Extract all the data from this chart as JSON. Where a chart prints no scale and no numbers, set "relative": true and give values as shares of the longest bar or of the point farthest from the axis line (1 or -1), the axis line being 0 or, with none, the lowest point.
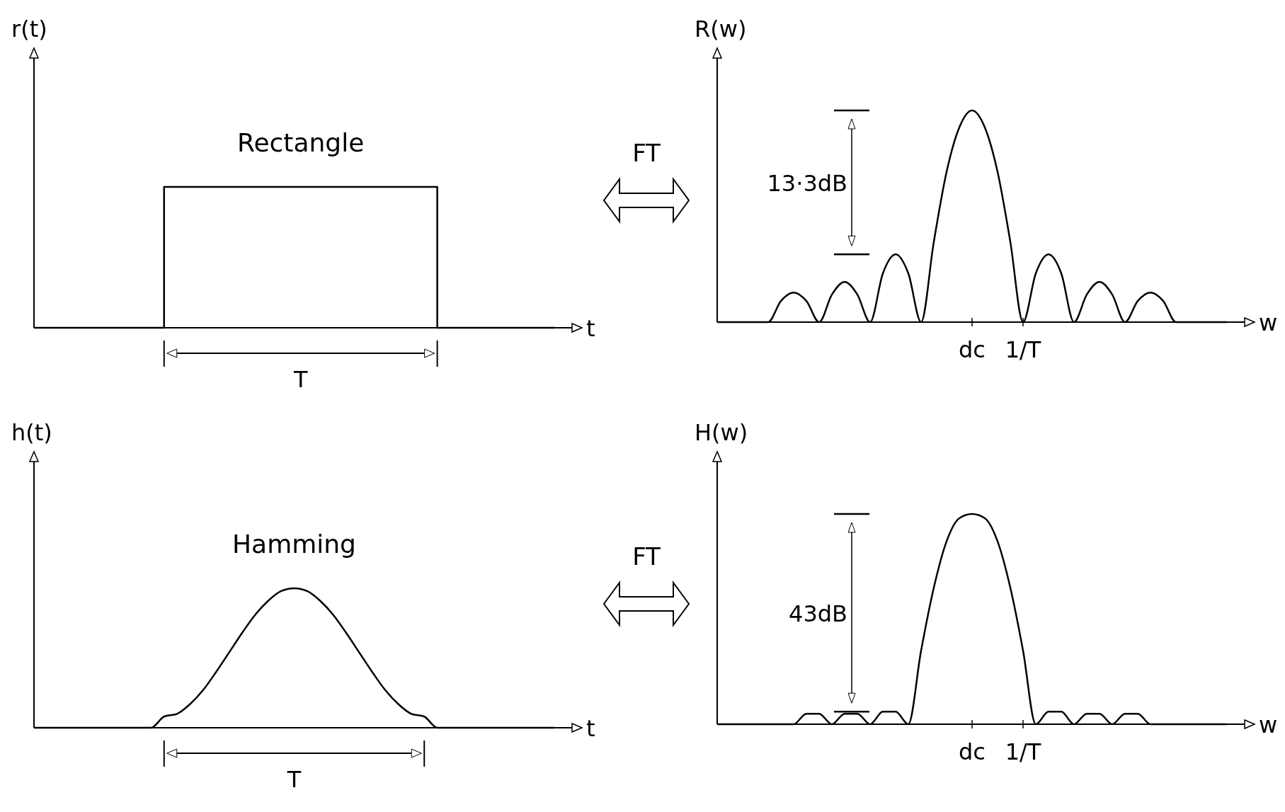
{
  "chart_data": [
    {
      "type": "step",
      "title": "Rectangle",
      "ylabel": "r(t)",
      "xlabel": "t",
      "relative": true,
      "tick_labels": false,
      "categories": [
        null,
        null,
        null,
        null,
        null,
        null,
        null,
        null,
        null,
        null,
        null,
        null,
        null,
        null,
        null,
        null,
        null,
        null,
        null,
        null,
        null,
        null,
        null,
        null,
        null,
        null,
        null,
        null,
        null,
        null,
        null,
        null,
        null,
        null,
        null,
        null,
        null,
        null,
        null,
        null,
        null
      ],
      "series": [
        {
          "color": "#000000",
          "values": [
            0,
            0,
            0,
            0,
            0,
            0,
            0,
            0,
            0,
            0,
            1,
            1,
            1,
            1,
            1,
            1,
            1,
            1,
            1,
            1,
            1,
            1,
            1,
            1,
            1,
            1,
            1,
            1,
            1,
            1,
            1,
            0,
            0,
            0,
            0,
            0,
            0,
            0,
            0,
            0,
            0
          ]
        }
      ],
      "annotations": [
        "T"
      ]
    },
    {
      "type": "line",
      "ylabel": "R(w)",
      "xlabel": "w",
      "relative": true,
      "tick_labels": "x",
      "categories": [
        null,
        null,
        null,
        null,
        null,
        null,
        null,
        null,
        null,
        null,
        null,
        null,
        null,
        null,
        null,
        null,
        null,
        null,
        null,
        null,
        "dc",
        null,
        null,
        null,
        "1/T",
        null,
        null,
        null,
        null,
        null,
        null,
        null,
        null,
        null,
        null,
        null,
        null,
        null,
        null,
        null,
        null
      ],
      "series": [
        {
          "color": "#000000",
          "values": [
            0,
            0,
            0,
            0,
            0,
            0.1,
            0.14,
            0.1,
            0,
            0.13,
            0.19,
            0.13,
            0,
            0.23,
            0.32,
            0.23,
            0,
            0.38,
            0.71,
            0.92,
            1,
            0.92,
            0.71,
            0.38,
            0,
            0.23,
            0.32,
            0.23,
            0,
            0.13,
            0.19,
            0.13,
            0,
            0.1,
            0.14,
            0.1,
            0,
            0,
            0,
            0,
            0
          ]
        }
      ],
      "annotations": [
        "FT",
        "13·3dB"
      ]
    },
    {
      "type": "line",
      "title": "Hamming",
      "ylabel": "h(t)",
      "xlabel": "t",
      "relative": true,
      "tick_labels": false,
      "categories": [
        null,
        null,
        null,
        null,
        null,
        null,
        null,
        null,
        null,
        null,
        null,
        null,
        null,
        null,
        null,
        null,
        null,
        null,
        null,
        null,
        null,
        null,
        null,
        null,
        null,
        null,
        null,
        null,
        null,
        null,
        null,
        null,
        null,
        null,
        null,
        null,
        null,
        null,
        null,
        null,
        null
      ],
      "series": [
        {
          "color": "#000000",
          "values": [
            0,
            0,
            0,
            0,
            0,
            0,
            0,
            0,
            0,
            0,
            0.08,
            0.1,
            0.17,
            0.27,
            0.4,
            0.54,
            0.68,
            0.81,
            0.91,
            0.98,
            1,
            0.98,
            0.91,
            0.81,
            0.68,
            0.54,
            0.4,
            0.27,
            0.17,
            0.1,
            0.08,
            0,
            0,
            0,
            0,
            0,
            0,
            0,
            0,
            0,
            0
          ]
        }
      ],
      "annotations": [
        "T"
      ]
    },
    {
      "type": "line",
      "ylabel": "H(w)",
      "xlabel": "w",
      "relative": true,
      "tick_labels": "x",
      "categories": [
        null,
        null,
        null,
        null,
        null,
        null,
        null,
        null,
        null,
        null,
        null,
        null,
        null,
        null,
        null,
        null,
        null,
        null,
        null,
        null,
        "dc",
        null,
        null,
        null,
        "1/T",
        null,
        null,
        null,
        null,
        null,
        null,
        null,
        null,
        null,
        null,
        null,
        null,
        null,
        null,
        null,
        null
      ],
      "series": [
        {
          "color": "#000000",
          "values": [
            0,
            0,
            0,
            0,
            0,
            0,
            0,
            0.05,
            0.05,
            0,
            0.05,
            0.05,
            0,
            0.06,
            0.06,
            0,
            0.35,
            0.65,
            0.87,
            0.98,
            1,
            0.98,
            0.87,
            0.65,
            0.35,
            0,
            0.06,
            0.06,
            0,
            0.05,
            0.05,
            0,
            0.05,
            0.05,
            0,
            0,
            0,
            0,
            0,
            0,
            0
          ]
        }
      ],
      "annotations": [
        "FT",
        "43dB"
      ]
    }
  ]
}
